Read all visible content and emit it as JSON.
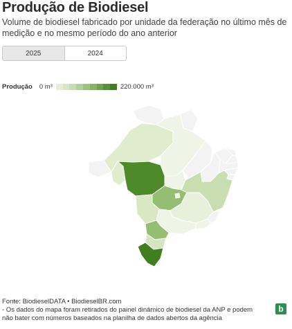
{
  "title": "Produção de Biodiesel",
  "subtitle": "Volume de biodiesel fabricado por unidade da federação no último mês de medição e no mesmo período do ano anterior",
  "tabs": [
    {
      "label": "2025",
      "active": true
    },
    {
      "label": "2024",
      "active": false
    }
  ],
  "legend": {
    "label": "Produção",
    "min": "0 m³",
    "max": "220.000 m³",
    "color_min": "#e4efd6",
    "color_max": "#3f7f1f"
  },
  "map": {
    "states": [
      {
        "code": "AM",
        "fill": "#dfeccd"
      },
      {
        "code": "PA",
        "fill": "#eef4e6"
      },
      {
        "code": "RR",
        "fill": "#f3f3f3"
      },
      {
        "code": "AP",
        "fill": "#f3f3f3"
      },
      {
        "code": "AC",
        "fill": "#f3f3f3"
      },
      {
        "code": "RO",
        "fill": "#dfeccd"
      },
      {
        "code": "MT",
        "fill": "#4e8a2a"
      },
      {
        "code": "TO",
        "fill": "#eef4e6"
      },
      {
        "code": "MA",
        "fill": "#f3f3f3"
      },
      {
        "code": "PI",
        "fill": "#f3f3f3"
      },
      {
        "code": "CE",
        "fill": "#f3f3f3"
      },
      {
        "code": "RN",
        "fill": "#f3f3f3"
      },
      {
        "code": "PB",
        "fill": "#f3f3f3"
      },
      {
        "code": "PE",
        "fill": "#f3f3f3"
      },
      {
        "code": "AL",
        "fill": "#f3f3f3"
      },
      {
        "code": "SE",
        "fill": "#f3f3f3"
      },
      {
        "code": "BA",
        "fill": "#c8deb0"
      },
      {
        "code": "GO",
        "fill": "#94bf72"
      },
      {
        "code": "DF",
        "fill": "#f3f3f3"
      },
      {
        "code": "MS",
        "fill": "#d7e8c3"
      },
      {
        "code": "MG",
        "fill": "#e6f0da"
      },
      {
        "code": "ES",
        "fill": "#f3f3f3"
      },
      {
        "code": "RJ",
        "fill": "#eef4e6"
      },
      {
        "code": "SP",
        "fill": "#eef4e6"
      },
      {
        "code": "PR",
        "fill": "#94bf72"
      },
      {
        "code": "SC",
        "fill": "#d4e6c0"
      },
      {
        "code": "RS",
        "fill": "#3f7f1f"
      }
    ]
  },
  "footer": {
    "source": "Fonte: BiodieselDATA • BiodieselBR.com",
    "note_line1": "- Os dados do mapa foram retirados do painel dinâmico de biodiesel da ANP e podem",
    "note_line2": "não bater com números baseados na planilha de dados abertos da agência"
  },
  "logo": {
    "letter": "b",
    "color": "#2f8f4e"
  }
}
